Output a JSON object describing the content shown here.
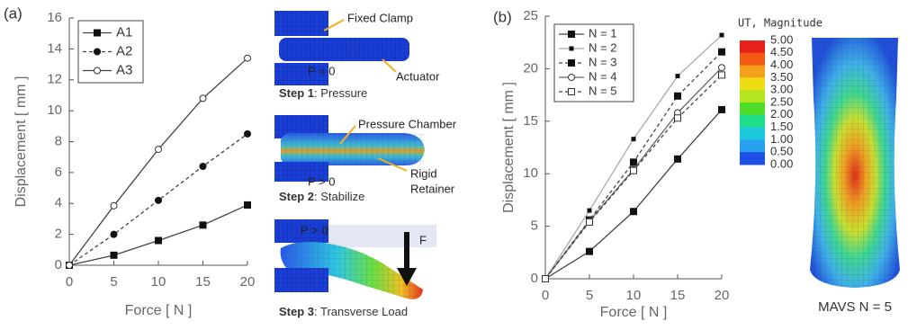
{
  "panel_labels": [
    "(a)",
    "(b)"
  ],
  "chart_data": [
    {
      "type": "line",
      "x_label": "Force [ N ]",
      "y_label": "Displacement [ mm ]",
      "x": [
        0,
        5,
        10,
        15,
        20
      ],
      "xlim": [
        0,
        20
      ],
      "xticks": [
        0,
        5,
        10,
        15,
        20
      ],
      "ylim": [
        0,
        16
      ],
      "yticks": [
        0,
        2,
        4,
        6,
        8,
        10,
        12,
        14,
        16
      ],
      "legend": "upper left",
      "series": [
        {
          "name": "A1",
          "color": "#444444",
          "marker": "square",
          "dash": false,
          "values": [
            0,
            0.65,
            1.6,
            2.6,
            3.9
          ]
        },
        {
          "name": "A2",
          "color": "#444444",
          "marker": "circle",
          "dash": true,
          "values": [
            0,
            2.0,
            4.2,
            6.4,
            8.5
          ]
        },
        {
          "name": "A3",
          "color": "#444444",
          "marker": "open-circle",
          "dash": false,
          "values": [
            0,
            3.85,
            7.5,
            10.8,
            13.4
          ]
        }
      ]
    },
    {
      "type": "line",
      "x_label": "Force [ N ]",
      "y_label": "Displacement [ mm ]",
      "x": [
        0,
        5,
        10,
        15,
        20
      ],
      "xlim": [
        0,
        20
      ],
      "xticks": [
        0,
        5,
        10,
        15,
        20
      ],
      "ylim": [
        0,
        25
      ],
      "yticks": [
        0,
        5,
        10,
        15,
        20,
        25
      ],
      "legend": "upper left",
      "series": [
        {
          "name": "N = 1",
          "color": "#444444",
          "marker": "square",
          "dash": false,
          "values": [
            0,
            2.6,
            6.4,
            11.4,
            16.1
          ]
        },
        {
          "name": "N = 2",
          "color": "#aaaaaa",
          "marker": "small-square",
          "dash": false,
          "values": [
            0,
            6.5,
            13.3,
            19.3,
            23.2
          ]
        },
        {
          "name": "N = 3",
          "color": "#444444",
          "marker": "square",
          "dash": true,
          "values": [
            0,
            5.6,
            11.1,
            17.4,
            21.6
          ]
        },
        {
          "name": "N = 4",
          "color": "#666666",
          "marker": "open-circle",
          "dash": false,
          "values": [
            0,
            5.5,
            10.4,
            15.8,
            20.1
          ]
        },
        {
          "name": "N = 5",
          "color": "#444444",
          "marker": "open-square",
          "dash": true,
          "values": [
            0,
            5.4,
            10.3,
            15.3,
            19.4
          ]
        }
      ]
    }
  ],
  "steps": [
    {
      "step": "Step 1",
      "caption": ": Pressure",
      "labels": [
        "Fixed Clamp",
        "Actuator",
        "P = 0"
      ]
    },
    {
      "step": "Step 2",
      "caption": ": Stabilize",
      "labels": [
        "Pressure Chamber",
        "Rigid",
        "Retainer",
        "P > 0"
      ]
    },
    {
      "step": "Step 3",
      "caption": ": Transverse Load",
      "labels": [
        "P > 0",
        "F"
      ]
    }
  ],
  "contour": {
    "title": "UT, Magnitude",
    "caption": "MAVS N = 5",
    "ticks": [
      {
        "value": 5,
        "label": "5.00"
      },
      {
        "value": 4.5,
        "label": "4.50"
      },
      {
        "value": 4,
        "label": "4.00"
      },
      {
        "value": 3.5,
        "label": "3.50"
      },
      {
        "value": 3,
        "label": "3.00"
      },
      {
        "value": 2.5,
        "label": "2.50"
      },
      {
        "value": 2,
        "label": "2.00"
      },
      {
        "value": 1.5,
        "label": "1.50"
      },
      {
        "value": 1,
        "label": "1.00"
      },
      {
        "value": 0.5,
        "label": "0.50"
      },
      {
        "value": 0,
        "label": "0.00"
      }
    ],
    "colors": [
      "#e8201c",
      "#f25a14",
      "#f5a01a",
      "#f0dc14",
      "#b4e61e",
      "#50dc28",
      "#1ede8c",
      "#1ec8dc",
      "#28a0f0",
      "#1e50e6"
    ]
  }
}
